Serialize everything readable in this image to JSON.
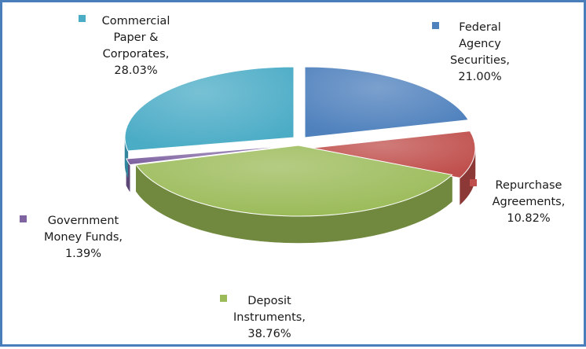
{
  "chart_data": {
    "type": "pie",
    "three_d": true,
    "legend_placement": "labels-with-legend-keys",
    "slices": [
      {
        "label_lines": [
          "Federal",
          "Agency",
          "Securities,",
          "21.00%"
        ],
        "category": "Federal Agency Securities",
        "value": 21.0,
        "color": "#4f81bd",
        "side_color": "#385d8a"
      },
      {
        "label_lines": [
          "Repurchase",
          "Agreements,",
          "10.82%"
        ],
        "category": "Repurchase Agreements",
        "value": 10.82,
        "color": "#c0504d",
        "side_color": "#8c3836"
      },
      {
        "label_lines": [
          "Deposit",
          "Instruments,",
          "38.76%"
        ],
        "category": "Deposit Instruments",
        "value": 38.76,
        "color": "#9bbb59",
        "side_color": "#71893f"
      },
      {
        "label_lines": [
          "Government",
          "Money Funds,",
          "1.39%"
        ],
        "category": "Government Money Funds",
        "value": 1.39,
        "color": "#8064a2",
        "side_color": "#5c4776"
      },
      {
        "label_lines": [
          "Commercial",
          "Paper &",
          "Corporates,",
          "28.03%"
        ],
        "category": "Commercial Paper & Corporates",
        "value": 28.03,
        "color": "#4bacc6",
        "side_color": "#31859c"
      }
    ]
  }
}
